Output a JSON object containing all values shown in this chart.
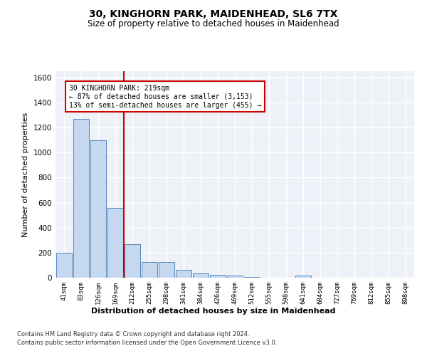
{
  "title": "30, KINGHORN PARK, MAIDENHEAD, SL6 7TX",
  "subtitle": "Size of property relative to detached houses in Maidenhead",
  "xlabel": "Distribution of detached houses by size in Maidenhead",
  "ylabel": "Number of detached properties",
  "bar_labels": [
    "41sqm",
    "83sqm",
    "126sqm",
    "169sqm",
    "212sqm",
    "255sqm",
    "298sqm",
    "341sqm",
    "384sqm",
    "426sqm",
    "469sqm",
    "512sqm",
    "555sqm",
    "598sqm",
    "641sqm",
    "684sqm",
    "727sqm",
    "769sqm",
    "812sqm",
    "855sqm",
    "898sqm"
  ],
  "bar_values": [
    200,
    1270,
    1100,
    560,
    265,
    125,
    125,
    60,
    35,
    25,
    15,
    5,
    2,
    2,
    15,
    2,
    2,
    2,
    2,
    2,
    2
  ],
  "bar_color": "#c5d8f0",
  "bar_edge_color": "#5588bb",
  "highlight_line_color": "#cc0000",
  "annotation_line1": "30 KINGHORN PARK: 219sqm",
  "annotation_line2": "← 87% of detached houses are smaller (3,153)",
  "annotation_line3": "13% of semi-detached houses are larger (455) →",
  "ylim": [
    0,
    1650
  ],
  "yticks": [
    0,
    200,
    400,
    600,
    800,
    1000,
    1200,
    1400,
    1600
  ],
  "background_color": "#ffffff",
  "plot_bg_color": "#eef2f8",
  "grid_color": "#ffffff",
  "footer_line1": "Contains HM Land Registry data © Crown copyright and database right 2024.",
  "footer_line2": "Contains public sector information licensed under the Open Government Licence v3.0."
}
